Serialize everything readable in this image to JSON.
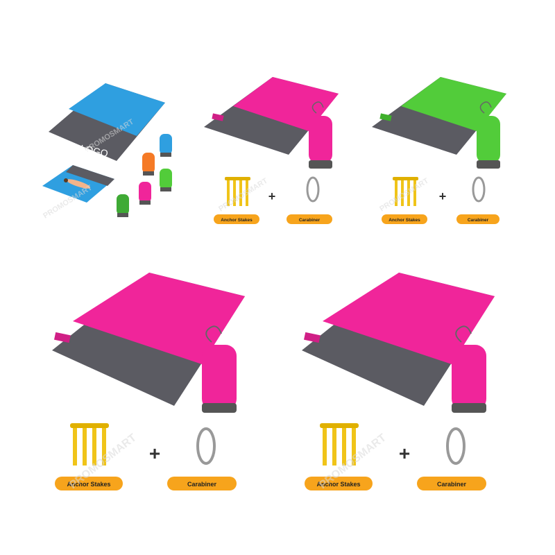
{
  "watermark": "PROMOSMART",
  "logo_text": "LOGO",
  "plus_sign": "+",
  "accessories": {
    "stakes_label": "Anchor Stakes",
    "carabiner_label": "Carabiner"
  },
  "colors": {
    "blue_mat": "#2f9fe0",
    "pink_mat": "#f0259a",
    "green_mat": "#52cc3a",
    "dark_panel": "#5b5b62",
    "orange_bag": "#f57a26",
    "stake_yellow": "#f0c419",
    "label_orange": "#f7a41c"
  }
}
